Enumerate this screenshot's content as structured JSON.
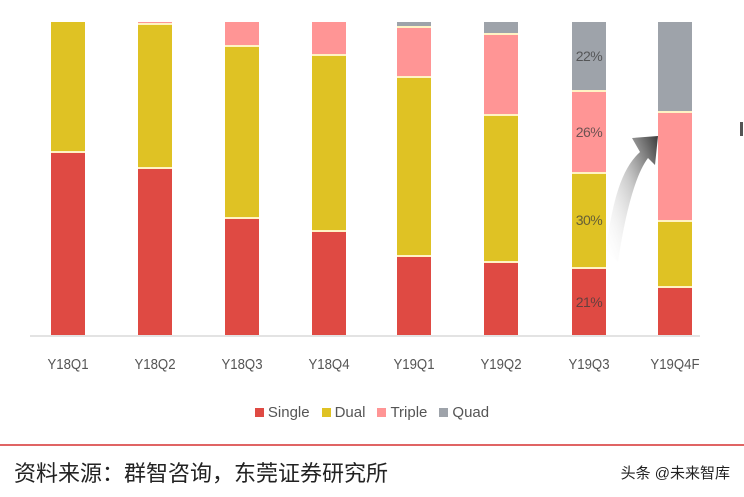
{
  "chart_data": {
    "type": "bar",
    "stacked": true,
    "percent_stacked": true,
    "title": "",
    "xlabel": "",
    "ylabel": "",
    "ylim": [
      0,
      100
    ],
    "grid": false,
    "legend_position": "bottom",
    "categories": [
      "Y18Q1",
      "Y18Q2",
      "Y18Q3",
      "Y18Q4",
      "Y19Q1",
      "Y19Q2",
      "Y19Q3",
      "Y19Q4F"
    ],
    "series": [
      {
        "name": "Single",
        "color": "#df4a43",
        "values": [
          58,
          53,
          37,
          33,
          25,
          23,
          21,
          15
        ]
      },
      {
        "name": "Dual",
        "color": "#dfc224",
        "values": [
          42,
          46,
          55,
          56,
          57,
          47,
          30,
          21
        ]
      },
      {
        "name": "Triple",
        "color": "#ff9595",
        "values": [
          0,
          1,
          8,
          11,
          16,
          26,
          26,
          35
        ]
      },
      {
        "name": "Quad",
        "color": "#9ea3aa",
        "values": [
          0,
          0,
          0,
          0,
          2,
          4,
          22,
          29
        ]
      }
    ],
    "annotations": [
      {
        "category": "Y19Q3",
        "series": "Single",
        "text": "21%"
      },
      {
        "category": "Y19Q3",
        "series": "Dual",
        "text": "30%"
      },
      {
        "category": "Y19Q3",
        "series": "Triple",
        "text": "26%"
      },
      {
        "category": "Y19Q3",
        "series": "Quad",
        "text": "22%"
      },
      {
        "type": "arrow",
        "from": "Y19Q3",
        "to": "Y19Q4F"
      }
    ]
  },
  "legend": {
    "items": [
      {
        "label": "Single",
        "color": "#df4a43"
      },
      {
        "label": "Dual",
        "color": "#dfc224"
      },
      {
        "label": "Triple",
        "color": "#ff9595"
      },
      {
        "label": "Quad",
        "color": "#9ea3aa"
      }
    ]
  },
  "footer": {
    "source": "资料来源：群智咨询，东莞证券研究所",
    "watermark": "头条 @未来智库"
  }
}
